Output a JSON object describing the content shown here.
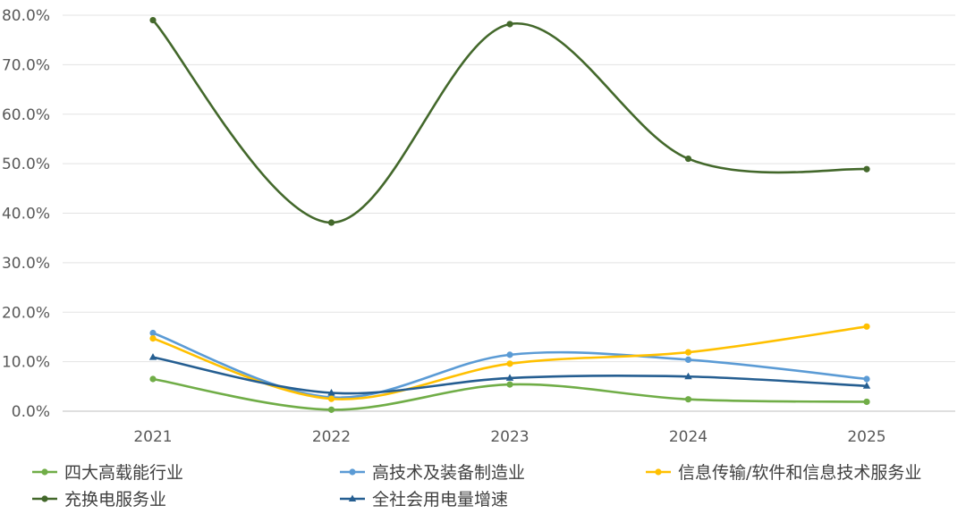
{
  "chart_data": {
    "type": "line",
    "categories": [
      "2021",
      "2022",
      "2023",
      "2024",
      "2025"
    ],
    "yticks": [
      "0.0%",
      "10.0%",
      "20.0%",
      "30.0%",
      "40.0%",
      "50.0%",
      "60.0%",
      "70.0%",
      "80.0%"
    ],
    "ylim": [
      0,
      80
    ],
    "grid": true,
    "legend_position": "bottom",
    "series": [
      {
        "name": "四大高载能行业",
        "values": [
          6.5,
          0.3,
          5.4,
          2.4,
          1.9
        ],
        "color": "#70AD47",
        "marker": "circle"
      },
      {
        "name": "高技术及装备制造业",
        "values": [
          15.8,
          2.8,
          11.4,
          10.4,
          6.5
        ],
        "color": "#5B9BD5",
        "marker": "circle"
      },
      {
        "name": "信息传输/软件和信息技术服务业",
        "values": [
          14.7,
          2.5,
          9.6,
          11.9,
          17.1
        ],
        "color": "#FFC000",
        "marker": "circle"
      },
      {
        "name": "充换电服务业",
        "values": [
          79.0,
          38.1,
          78.2,
          51.0,
          48.9
        ],
        "color": "#43682B",
        "marker": "circle"
      },
      {
        "name": "全社会用电量增速",
        "values": [
          10.9,
          3.7,
          6.7,
          7.0,
          5.1
        ],
        "color": "#255E91",
        "marker": "triangle"
      }
    ]
  }
}
